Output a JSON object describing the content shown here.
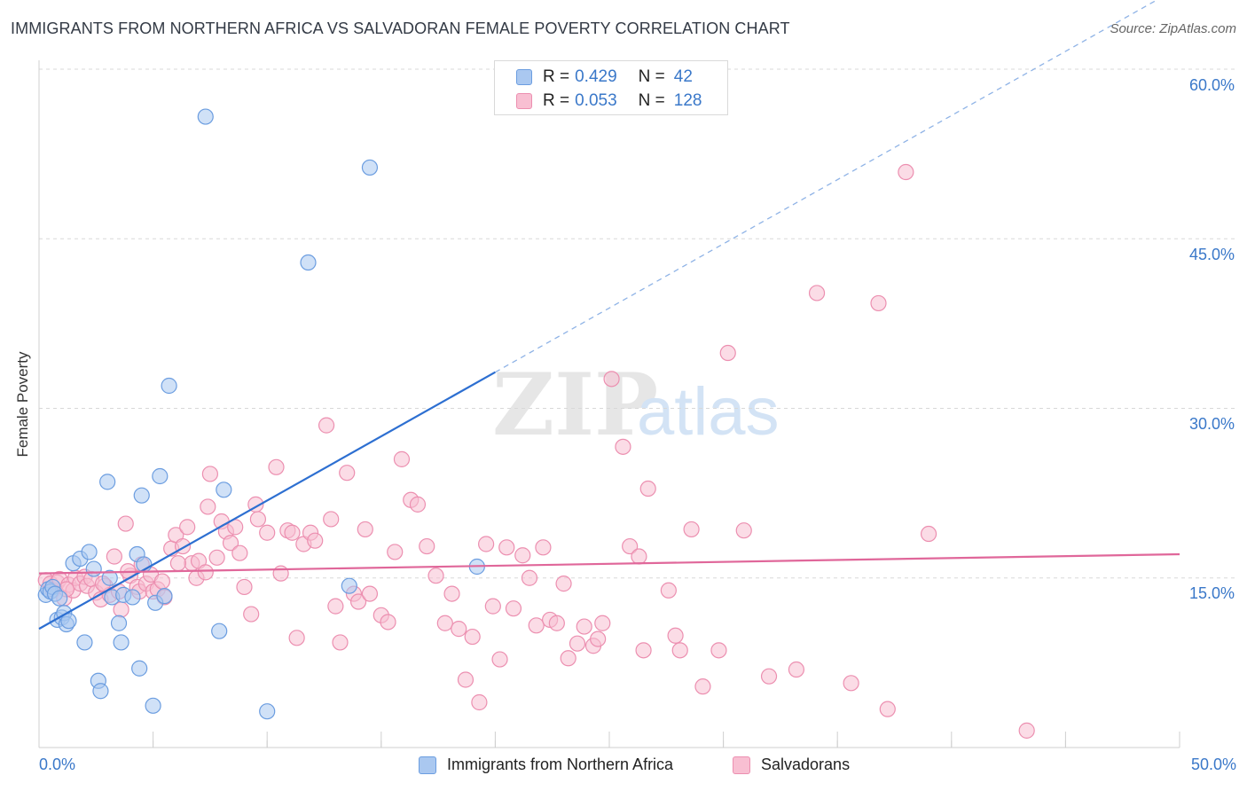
{
  "title": "IMMIGRANTS FROM NORTHERN AFRICA VS SALVADORAN FEMALE POVERTY CORRELATION CHART",
  "source": "Source: ZipAtlas.com",
  "watermark": {
    "zip": "ZIP",
    "atlas": "atlas"
  },
  "legend_top": {
    "rows": [
      {
        "r_label": "R =",
        "r_value": "0.429",
        "n_label": "N =",
        "n_value": "42",
        "color": "#aac8f0",
        "border": "#6b9de0"
      },
      {
        "r_label": "R =",
        "r_value": "0.053",
        "n_label": "N =",
        "n_value": "128",
        "color": "#f8bfd2",
        "border": "#ec8fb0"
      }
    ]
  },
  "legend_bottom": [
    {
      "label": "Immigrants from Northern Africa",
      "color": "#aac8f0",
      "border": "#6b9de0"
    },
    {
      "label": "Salvadorans",
      "color": "#f8bfd2",
      "border": "#ec8fb0"
    }
  ],
  "chart_data": {
    "type": "scatter",
    "title": "IMMIGRANTS FROM NORTHERN AFRICA VS SALVADORAN FEMALE POVERTY CORRELATION CHART",
    "xlabel": "",
    "ylabel": "Female Poverty",
    "xlim": [
      0,
      50
    ],
    "ylim": [
      0,
      60
    ],
    "x_tick_labels": [
      "0.0%",
      "50.0%"
    ],
    "y_ticks": [
      15,
      30,
      45,
      60
    ],
    "y_tick_labels": [
      "15.0%",
      "30.0%",
      "45.0%",
      "60.0%"
    ],
    "grid": true,
    "legend_placement": "top-center",
    "colors": {
      "blue": "#6b9de0",
      "blue_fill": "#aac8f0",
      "pink": "#ec8fb0",
      "pink_fill": "#f8bfd2",
      "blue_line": "#2d6fd1",
      "pink_line": "#e0679a"
    },
    "series": [
      {
        "name": "Immigrants from Northern Africa",
        "color": "#6b9de0",
        "points": [
          [
            0.3,
            13.5
          ],
          [
            0.4,
            14.0
          ],
          [
            0.5,
            13.8
          ],
          [
            0.6,
            14.2
          ],
          [
            0.7,
            13.6
          ],
          [
            0.8,
            11.3
          ],
          [
            0.9,
            13.2
          ],
          [
            1.0,
            11.5
          ],
          [
            1.1,
            11.9
          ],
          [
            1.2,
            10.9
          ],
          [
            1.3,
            11.2
          ],
          [
            1.5,
            16.3
          ],
          [
            1.8,
            16.7
          ],
          [
            2.0,
            9.3
          ],
          [
            2.2,
            17.3
          ],
          [
            2.4,
            15.8
          ],
          [
            2.6,
            5.9
          ],
          [
            2.7,
            5.0
          ],
          [
            3.0,
            23.5
          ],
          [
            3.1,
            15.0
          ],
          [
            3.2,
            13.3
          ],
          [
            3.5,
            11.0
          ],
          [
            3.6,
            9.3
          ],
          [
            3.7,
            13.5
          ],
          [
            4.1,
            13.3
          ],
          [
            4.3,
            17.1
          ],
          [
            4.4,
            7.0
          ],
          [
            4.5,
            22.3
          ],
          [
            4.6,
            16.2
          ],
          [
            5.0,
            3.7
          ],
          [
            5.1,
            12.8
          ],
          [
            5.3,
            24.0
          ],
          [
            5.5,
            13.4
          ],
          [
            5.7,
            32.0
          ],
          [
            7.9,
            10.3
          ],
          [
            8.1,
            22.8
          ],
          [
            7.3,
            55.8
          ],
          [
            10.0,
            3.2
          ],
          [
            11.8,
            42.9
          ],
          [
            13.6,
            14.3
          ],
          [
            14.5,
            51.3
          ],
          [
            19.2,
            16.0
          ]
        ]
      },
      {
        "name": "Salvadorans",
        "color": "#ec8fb0",
        "points": [
          [
            0.3,
            14.8
          ],
          [
            0.5,
            14.5
          ],
          [
            0.6,
            13.9
          ],
          [
            0.8,
            14.6
          ],
          [
            0.9,
            14.9
          ],
          [
            1.1,
            13.2
          ],
          [
            1.3,
            14.4
          ],
          [
            1.5,
            13.9
          ],
          [
            1.6,
            15.0
          ],
          [
            1.8,
            14.5
          ],
          [
            2.0,
            15.1
          ],
          [
            2.1,
            14.3
          ],
          [
            2.3,
            14.9
          ],
          [
            2.5,
            13.7
          ],
          [
            2.7,
            13.1
          ],
          [
            2.9,
            14.3
          ],
          [
            3.1,
            13.5
          ],
          [
            3.3,
            16.9
          ],
          [
            3.5,
            13.8
          ],
          [
            3.6,
            12.2
          ],
          [
            3.8,
            19.8
          ],
          [
            4.0,
            15.2
          ],
          [
            4.3,
            14.2
          ],
          [
            4.4,
            13.8
          ],
          [
            4.5,
            16.2
          ],
          [
            4.7,
            14.5
          ],
          [
            4.9,
            15.3
          ],
          [
            5.0,
            13.8
          ],
          [
            5.2,
            14.0
          ],
          [
            5.4,
            14.7
          ],
          [
            5.5,
            13.3
          ],
          [
            5.8,
            17.6
          ],
          [
            6.0,
            18.8
          ],
          [
            6.3,
            17.8
          ],
          [
            6.5,
            19.5
          ],
          [
            6.7,
            16.3
          ],
          [
            6.9,
            15.0
          ],
          [
            7.0,
            16.5
          ],
          [
            7.3,
            15.5
          ],
          [
            7.4,
            21.3
          ],
          [
            7.5,
            24.2
          ],
          [
            7.8,
            16.8
          ],
          [
            8.0,
            20.0
          ],
          [
            8.2,
            19.1
          ],
          [
            8.4,
            18.1
          ],
          [
            8.6,
            19.5
          ],
          [
            8.8,
            17.2
          ],
          [
            9.0,
            14.2
          ],
          [
            9.3,
            11.8
          ],
          [
            9.6,
            20.2
          ],
          [
            10.0,
            19.0
          ],
          [
            10.4,
            24.8
          ],
          [
            10.6,
            15.4
          ],
          [
            10.9,
            19.2
          ],
          [
            11.1,
            19.0
          ],
          [
            11.3,
            9.7
          ],
          [
            11.6,
            18.0
          ],
          [
            11.9,
            19.0
          ],
          [
            12.1,
            18.3
          ],
          [
            12.6,
            28.5
          ],
          [
            12.8,
            20.2
          ],
          [
            13.0,
            12.5
          ],
          [
            13.2,
            9.3
          ],
          [
            13.5,
            24.3
          ],
          [
            13.8,
            13.6
          ],
          [
            14.0,
            12.9
          ],
          [
            14.3,
            19.3
          ],
          [
            14.5,
            13.6
          ],
          [
            15.0,
            11.7
          ],
          [
            15.3,
            11.1
          ],
          [
            15.6,
            17.3
          ],
          [
            15.9,
            25.5
          ],
          [
            16.3,
            21.9
          ],
          [
            16.6,
            21.5
          ],
          [
            17.0,
            17.8
          ],
          [
            17.4,
            15.2
          ],
          [
            17.8,
            11.0
          ],
          [
            18.1,
            13.6
          ],
          [
            18.4,
            10.5
          ],
          [
            18.7,
            6.0
          ],
          [
            19.0,
            9.8
          ],
          [
            19.3,
            4.0
          ],
          [
            19.6,
            18.0
          ],
          [
            19.9,
            12.5
          ],
          [
            20.2,
            7.8
          ],
          [
            20.5,
            17.7
          ],
          [
            20.8,
            12.3
          ],
          [
            21.2,
            17.0
          ],
          [
            21.5,
            15.0
          ],
          [
            21.8,
            10.8
          ],
          [
            22.1,
            17.7
          ],
          [
            22.4,
            11.3
          ],
          [
            22.7,
            11.0
          ],
          [
            23.0,
            14.5
          ],
          [
            23.2,
            7.9
          ],
          [
            23.6,
            9.2
          ],
          [
            23.9,
            10.7
          ],
          [
            24.3,
            9.0
          ],
          [
            24.5,
            9.6
          ],
          [
            24.7,
            11.0
          ],
          [
            25.1,
            32.6
          ],
          [
            25.6,
            26.6
          ],
          [
            25.9,
            17.8
          ],
          [
            26.3,
            16.9
          ],
          [
            26.5,
            8.6
          ],
          [
            26.7,
            22.9
          ],
          [
            27.6,
            13.9
          ],
          [
            27.9,
            9.9
          ],
          [
            28.1,
            8.6
          ],
          [
            28.6,
            19.3
          ],
          [
            29.1,
            5.4
          ],
          [
            29.8,
            8.6
          ],
          [
            30.2,
            34.9
          ],
          [
            30.9,
            19.2
          ],
          [
            32.0,
            6.3
          ],
          [
            33.2,
            6.9
          ],
          [
            34.1,
            40.2
          ],
          [
            35.6,
            5.7
          ],
          [
            36.8,
            39.3
          ],
          [
            37.2,
            3.4
          ],
          [
            38.0,
            50.9
          ],
          [
            39.0,
            18.9
          ],
          [
            43.3,
            1.5
          ],
          [
            1.2,
            14.0
          ],
          [
            2.8,
            14.5
          ],
          [
            3.9,
            15.6
          ],
          [
            6.1,
            16.3
          ],
          [
            9.5,
            21.5
          ]
        ]
      }
    ],
    "trend_lines": [
      {
        "series": "Immigrants from Northern Africa",
        "x0": 0,
        "y0": 10.5,
        "x1": 20,
        "y1": 33.2,
        "dashed_to_x": 50
      },
      {
        "series": "Salvadorans",
        "x0": 0,
        "y0": 15.4,
        "x1": 50,
        "y1": 17.1
      }
    ]
  }
}
